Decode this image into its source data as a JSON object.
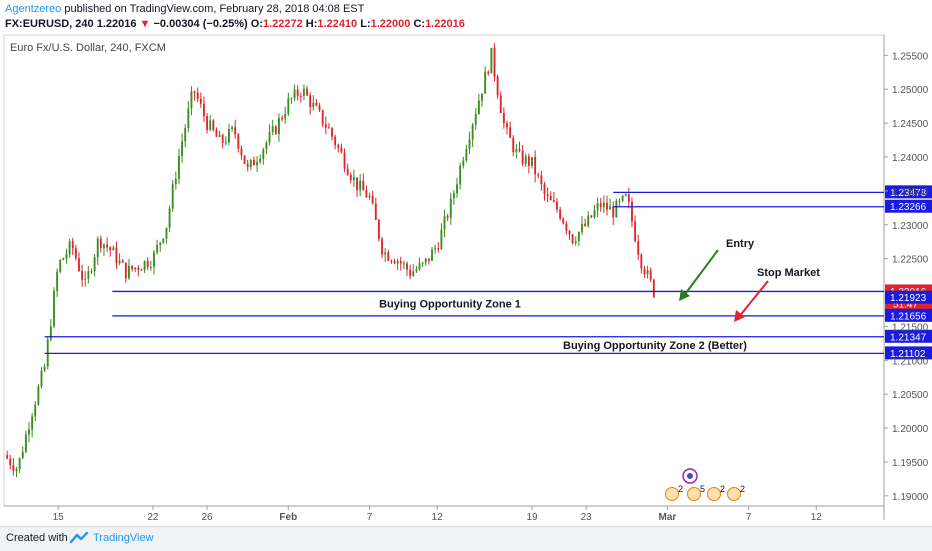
{
  "header": {
    "author": "Agentzereo",
    "published_text": "published on TradingView.com, February 28, 2018 04:08 EST",
    "symbol": "FX:EURUSD, 240",
    "last": "1.22016",
    "change_arrow": "▼",
    "change": "−0.00304 (−0.25%)",
    "o_label": "O:",
    "o_value": "1.22272",
    "h_label": "H:",
    "h_value": "1.22410",
    "l_label": "L:",
    "l_value": "1.22000",
    "c_label": "C:",
    "c_value": "1.22016"
  },
  "pane_title": "Euro Fx/U.S. Dollar, 240, FXCM",
  "footer": {
    "created_with": "Created with",
    "brand": "TradingView",
    "logo_icon": "tradingview-logo-icon"
  },
  "colors": {
    "up": "#3a8c1f",
    "down": "#e0242d",
    "zone_line": "#1a1ae0",
    "price_label_bg": "#1a1ae0",
    "last_label_bg": "#e0242d",
    "arrow_entry": "#2e7d1e",
    "arrow_stop": "#e0242d",
    "axis_text": "#555555"
  },
  "chart_data": {
    "type": "candlestick",
    "title": "Euro Fx/U.S. Dollar, 240, FXCM",
    "ylim": [
      1.1885,
      1.258
    ],
    "y_ticks": [
      1.19,
      1.195,
      1.2,
      1.205,
      1.21,
      1.215,
      1.225,
      1.23,
      1.235,
      1.24,
      1.245,
      1.25,
      1.255
    ],
    "y_tick_labels": [
      "1.19000",
      "1.19500",
      "1.20000",
      "1.20500",
      "1.21000",
      "1.21500",
      "1.22500",
      "1.23000",
      "1.23500",
      "1.24000",
      "1.24500",
      "1.25000",
      "1.25500"
    ],
    "x_tick_labels": [
      "15",
      "22",
      "26",
      "Feb",
      "7",
      "12",
      "19",
      "23",
      "Mar",
      "7",
      "12"
    ],
    "x_tick_dates": [
      "2018-01-15",
      "2018-01-22",
      "2018-01-26",
      "2018-02-01",
      "2018-02-07",
      "2018-02-12",
      "2018-02-19",
      "2018-02-23",
      "2018-03-01",
      "2018-03-07",
      "2018-03-12"
    ],
    "price_path": [
      [
        "2018-01-11",
        1.196
      ],
      [
        "2018-01-12",
        1.194
      ],
      [
        "2018-01-13",
        1.202
      ],
      [
        "2018-01-14",
        1.209
      ],
      [
        "2018-01-15",
        1.224
      ],
      [
        "2018-01-16",
        1.227
      ],
      [
        "2018-01-17",
        1.221
      ],
      [
        "2018-01-18",
        1.228
      ],
      [
        "2018-01-19",
        1.226
      ],
      [
        "2018-01-20",
        1.223
      ],
      [
        "2018-01-21",
        1.224
      ],
      [
        "2018-01-22",
        1.225
      ],
      [
        "2018-01-23",
        1.23
      ],
      [
        "2018-01-24",
        1.241
      ],
      [
        "2018-01-25",
        1.25
      ],
      [
        "2018-01-26",
        1.245
      ],
      [
        "2018-01-27",
        1.242
      ],
      [
        "2018-01-28",
        1.244
      ],
      [
        "2018-01-29",
        1.238
      ],
      [
        "2018-01-30",
        1.241
      ],
      [
        "2018-01-31",
        1.244
      ],
      [
        "2018-02-01",
        1.248
      ],
      [
        "2018-02-02",
        1.25
      ],
      [
        "2018-02-03",
        1.247
      ],
      [
        "2018-02-04",
        1.244
      ],
      [
        "2018-02-05",
        1.24
      ],
      [
        "2018-02-06",
        1.236
      ],
      [
        "2018-02-07",
        1.234
      ],
      [
        "2018-02-08",
        1.226
      ],
      [
        "2018-02-09",
        1.225
      ],
      [
        "2018-02-10",
        1.223
      ],
      [
        "2018-02-11",
        1.224
      ],
      [
        "2018-02-12",
        1.227
      ],
      [
        "2018-02-13",
        1.233
      ],
      [
        "2018-02-14",
        1.241
      ],
      [
        "2018-02-15",
        1.248
      ],
      [
        "2018-02-16",
        1.255
      ],
      [
        "2018-02-17",
        1.244
      ],
      [
        "2018-02-18",
        1.24
      ],
      [
        "2018-02-19",
        1.239
      ],
      [
        "2018-02-20",
        1.234
      ],
      [
        "2018-02-21",
        1.232
      ],
      [
        "2018-02-22",
        1.228
      ],
      [
        "2018-02-23",
        1.23
      ],
      [
        "2018-02-24",
        1.233
      ],
      [
        "2018-02-25",
        1.232
      ],
      [
        "2018-02-26",
        1.234
      ],
      [
        "2018-02-27",
        1.225
      ],
      [
        "2018-02-28",
        1.2202
      ]
    ],
    "horizontal_levels": [
      {
        "price": 1.23478,
        "label": "1.23478"
      },
      {
        "price": 1.23266,
        "label": "1.23266"
      },
      {
        "price": 1.22016,
        "label": "1.22016"
      },
      {
        "price": 1.21923,
        "label": "1.21923"
      },
      {
        "price": 1.21656,
        "label": "1.21656"
      },
      {
        "price": 1.21347,
        "label": "1.21347"
      },
      {
        "price": 1.21102,
        "label": "1.21102"
      }
    ],
    "countdown_label": "51:47",
    "zones": [
      {
        "name": "Buying Opportunity Zone 1",
        "top": 1.22016,
        "bottom": 1.21656,
        "start": "2018-01-19"
      },
      {
        "name": "Buying Opportunity Zone 2 (Better)",
        "top": 1.21347,
        "bottom": 1.21102,
        "start": "2018-01-14"
      }
    ],
    "annotations": [
      {
        "text": "Entry",
        "price": 1.2278,
        "date": "2018-03-03"
      },
      {
        "text": "Stop Market",
        "price": 1.225,
        "date": "2018-03-06"
      }
    ],
    "event_icons": [
      "2",
      "5",
      "2",
      "2"
    ],
    "grid": false
  }
}
